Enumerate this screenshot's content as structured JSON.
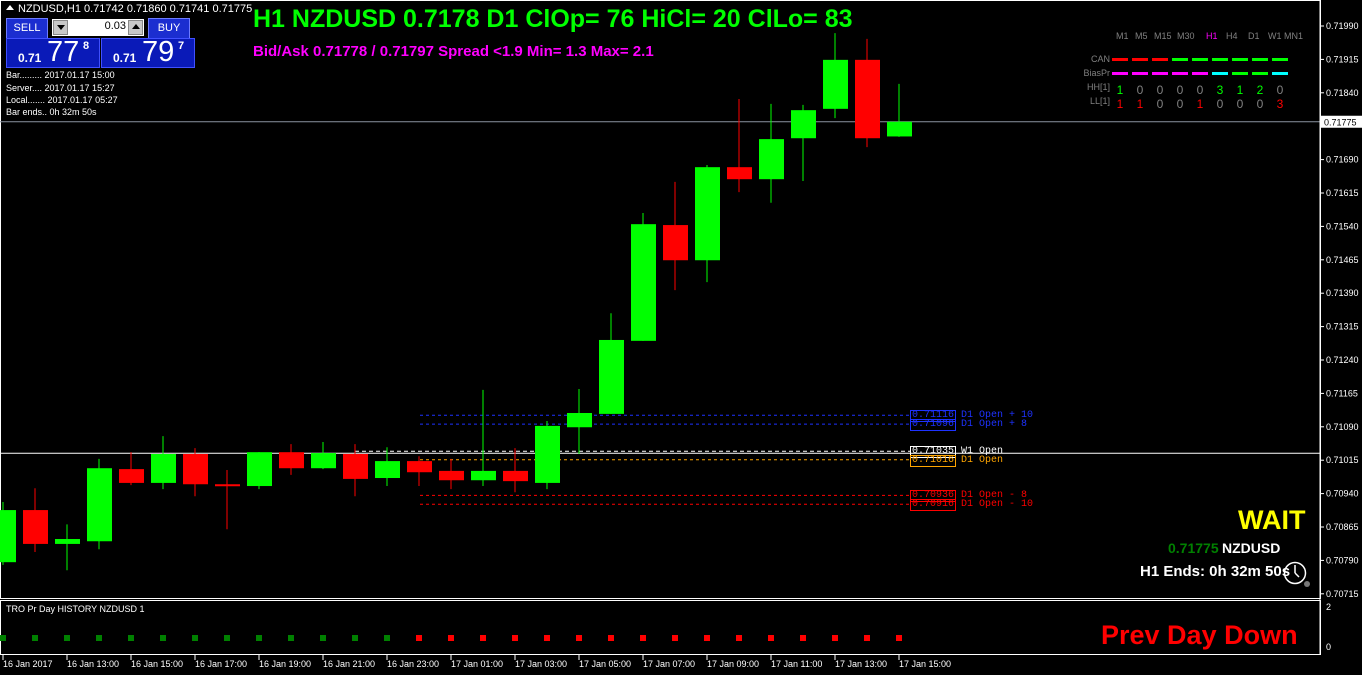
{
  "header": {
    "text": "NZDUSD,H1  0.71742 0.71860 0.71741 0.71775"
  },
  "trade_panel": {
    "sell_label": "SELL",
    "buy_label": "BUY",
    "lot_value": "0.03",
    "sell_price": {
      "prefix": "0.71",
      "big": "77",
      "sup": "8"
    },
    "buy_price": {
      "prefix": "0.71",
      "big": "79",
      "sup": "7"
    }
  },
  "info_lines": [
    "Bar......... 2017.01.17 15:00",
    "Server.... 2017.01.17 15:27",
    "Local....... 2017.01.17 05:27",
    "Bar ends.. 0h 32m 50s"
  ],
  "title_line1": "H1 NZDUSD 0.7178  D1 ClOp= 76 HiCl= 20 ClLo= 83",
  "title_line2": "Bid/Ask 0.71778 / 0.71797  Spread  <1.9  Min= 1.3  Max= 2.1",
  "mtf_table": {
    "timeframes": [
      "M1",
      "M5",
      "M15",
      "M30",
      "H1",
      "H4",
      "D1",
      "W1",
      "MN1"
    ],
    "active_tf": "H1",
    "rows": [
      {
        "label": "CAN",
        "type": "bar",
        "colors": [
          "#ff0000",
          "#ff0000",
          "#ff0000",
          "#00ff00",
          "#00ff00",
          "#00ff00",
          "#00ff00",
          "#00ff00",
          "#00ff00"
        ]
      },
      {
        "label": "BiasPr",
        "type": "bar",
        "colors": [
          "#ff00ff",
          "#ff00ff",
          "#ff00ff",
          "#ff00ff",
          "#ff00ff",
          "#00ffff",
          "#00ff00",
          "#00ff00",
          "#00ffff"
        ]
      },
      {
        "label": "HH[1]",
        "type": "num",
        "values": [
          "1",
          "0",
          "0",
          "0",
          "0",
          "3",
          "1",
          "2",
          "0"
        ],
        "colors": [
          "#00ff00",
          "#808080",
          "#808080",
          "#808080",
          "#808080",
          "#00ff00",
          "#00ff00",
          "#00ff00",
          "#808080"
        ]
      },
      {
        "label": "LL[1]",
        "type": "num",
        "values": [
          "1",
          "1",
          "0",
          "0",
          "1",
          "0",
          "0",
          "0",
          "3"
        ],
        "colors": [
          "#ff0000",
          "#ff0000",
          "#808080",
          "#808080",
          "#ff0000",
          "#808080",
          "#808080",
          "#808080",
          "#ff0000"
        ]
      }
    ]
  },
  "levels": [
    {
      "price": 0.71116,
      "value": "0.71116",
      "label": "D1 Open + 10",
      "color": "#1e32ff"
    },
    {
      "price": 0.71096,
      "value": "0.71096",
      "label": "D1 Open + 8",
      "color": "#1e32ff"
    },
    {
      "price": 0.71035,
      "value": "0.71035",
      "label": "W1 Open",
      "color": "#ffffff"
    },
    {
      "price": 0.71016,
      "value": "0.71016",
      "label": "D1 Open",
      "color": "#ffa500"
    },
    {
      "price": 0.70936,
      "value": "0.70936",
      "label": "D1 Open - 8",
      "color": "#ff0000"
    },
    {
      "price": 0.70916,
      "value": "0.70916",
      "label": "D1 Open - 10",
      "color": "#ff0000"
    }
  ],
  "signal": {
    "text": "WAIT",
    "price": "0.71775",
    "symbol": "NZDUSD",
    "bar_ends": "H1 Ends: 0h 32m 50s"
  },
  "subwindow": {
    "title": "TRO Pr Day HISTORY NZDUSD 1",
    "status": "Prev Day Down",
    "axis": [
      "2",
      "0"
    ],
    "squares": [
      "g",
      "g",
      "g",
      "g",
      "g",
      "g",
      "g",
      "g",
      "g",
      "g",
      "g",
      "g",
      "g",
      "r",
      "r",
      "r",
      "r",
      "r",
      "r",
      "r",
      "r",
      "r",
      "r",
      "r",
      "r",
      "r",
      "r",
      "r",
      "r"
    ],
    "colors": {
      "g": "#008000",
      "r": "#ff0000"
    }
  },
  "chart_data": {
    "type": "candlestick",
    "symbol": "NZDUSD",
    "timeframe": "H1",
    "current_price": 0.71775,
    "current_price_label": "0.71775",
    "ylim": [
      0.707,
      0.72005
    ],
    "y_ticks": [
      "0.71990",
      "0.71915",
      "0.71840",
      "0.71765",
      "0.71690",
      "0.71615",
      "0.71540",
      "0.71465",
      "0.71390",
      "0.71315",
      "0.71240",
      "0.71165",
      "0.71090",
      "0.71015",
      "0.70940",
      "0.70865",
      "0.70790",
      "0.70715"
    ],
    "x_tick_labels": [
      "16 Jan 2017",
      "16 Jan 13:00",
      "16 Jan 15:00",
      "16 Jan 17:00",
      "16 Jan 19:00",
      "16 Jan 21:00",
      "16 Jan 23:00",
      "17 Jan 01:00",
      "17 Jan 03:00",
      "17 Jan 05:00",
      "17 Jan 07:00",
      "17 Jan 09:00",
      "17 Jan 11:00",
      "17 Jan 13:00",
      "17 Jan 15:00"
    ],
    "colors": {
      "up": "#00ff00",
      "down": "#ff0000"
    },
    "candles": [
      {
        "t": "16 Jan 11:00",
        "o": 0.70786,
        "h": 0.70921,
        "l": 0.7078,
        "c": 0.70903
      },
      {
        "t": "16 Jan 12:00",
        "o": 0.70903,
        "h": 0.70952,
        "l": 0.70809,
        "c": 0.70827
      },
      {
        "t": "16 Jan 13:00",
        "o": 0.70827,
        "h": 0.70871,
        "l": 0.70768,
        "c": 0.70838
      },
      {
        "t": "16 Jan 14:00",
        "o": 0.70833,
        "h": 0.71018,
        "l": 0.70815,
        "c": 0.70997
      },
      {
        "t": "16 Jan 15:00",
        "o": 0.70995,
        "h": 0.71033,
        "l": 0.70959,
        "c": 0.70964
      },
      {
        "t": "16 Jan 16:00",
        "o": 0.70964,
        "h": 0.71069,
        "l": 0.7095,
        "c": 0.71029
      },
      {
        "t": "16 Jan 17:00",
        "o": 0.71029,
        "h": 0.71042,
        "l": 0.70934,
        "c": 0.70961
      },
      {
        "t": "16 Jan 18:00",
        "o": 0.70961,
        "h": 0.70993,
        "l": 0.7086,
        "c": 0.70957
      },
      {
        "t": "16 Jan 19:00",
        "o": 0.70957,
        "h": 0.71033,
        "l": 0.7095,
        "c": 0.71033
      },
      {
        "t": "16 Jan 20:00",
        "o": 0.71033,
        "h": 0.71051,
        "l": 0.70982,
        "c": 0.70997
      },
      {
        "t": "16 Jan 21:00",
        "o": 0.70997,
        "h": 0.71056,
        "l": 0.70995,
        "c": 0.71031
      },
      {
        "t": "16 Jan 22:00",
        "o": 0.71029,
        "h": 0.71051,
        "l": 0.70934,
        "c": 0.70973
      },
      {
        "t": "16 Jan 23:00",
        "o": 0.70975,
        "h": 0.71044,
        "l": 0.70957,
        "c": 0.71013
      },
      {
        "t": "17 Jan 00:00",
        "o": 0.71013,
        "h": 0.71024,
        "l": 0.70957,
        "c": 0.70988
      },
      {
        "t": "17 Jan 01:00",
        "o": 0.70991,
        "h": 0.71018,
        "l": 0.7095,
        "c": 0.7097
      },
      {
        "t": "17 Jan 02:00",
        "o": 0.7097,
        "h": 0.71173,
        "l": 0.70957,
        "c": 0.70991
      },
      {
        "t": "17 Jan 03:00",
        "o": 0.70991,
        "h": 0.71042,
        "l": 0.70943,
        "c": 0.70968
      },
      {
        "t": "17 Jan 04:00",
        "o": 0.70964,
        "h": 0.71103,
        "l": 0.7095,
        "c": 0.71092
      },
      {
        "t": "17 Jan 05:00",
        "o": 0.71089,
        "h": 0.71175,
        "l": 0.71029,
        "c": 0.71121
      },
      {
        "t": "17 Jan 06:00",
        "o": 0.71119,
        "h": 0.71345,
        "l": 0.71119,
        "c": 0.71285
      },
      {
        "t": "17 Jan 07:00",
        "o": 0.71283,
        "h": 0.7157,
        "l": 0.71283,
        "c": 0.71545
      },
      {
        "t": "17 Jan 08:00",
        "o": 0.71543,
        "h": 0.7164,
        "l": 0.71397,
        "c": 0.71464
      },
      {
        "t": "17 Jan 09:00",
        "o": 0.71464,
        "h": 0.71678,
        "l": 0.71415,
        "c": 0.71673
      },
      {
        "t": "17 Jan 10:00",
        "o": 0.71673,
        "h": 0.71826,
        "l": 0.71617,
        "c": 0.71646
      },
      {
        "t": "17 Jan 11:00",
        "o": 0.71646,
        "h": 0.71815,
        "l": 0.71593,
        "c": 0.71736
      },
      {
        "t": "17 Jan 12:00",
        "o": 0.71738,
        "h": 0.71813,
        "l": 0.71642,
        "c": 0.71801
      },
      {
        "t": "17 Jan 13:00",
        "o": 0.71804,
        "h": 0.71974,
        "l": 0.71783,
        "c": 0.71914
      },
      {
        "t": "17 Jan 14:00",
        "o": 0.71914,
        "h": 0.71961,
        "l": 0.71718,
        "c": 0.71738
      },
      {
        "t": "17 Jan 15:00",
        "o": 0.71742,
        "h": 0.7186,
        "l": 0.71741,
        "c": 0.71775
      }
    ]
  }
}
